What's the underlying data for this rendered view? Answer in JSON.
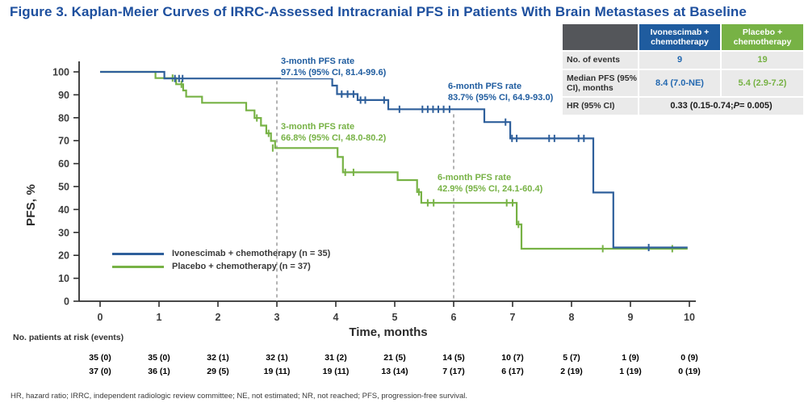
{
  "figure": {
    "title": "Figure 3. Kaplan-Meier Curves of IRRC-Assessed Intracranial PFS in Patients With Brain Metastases at Baseline",
    "footnote": "HR, hazard ratio; IRRC, independent radiologic review committee; NE, not estimated; NR, not reached; PFS, progression-free survival."
  },
  "colors": {
    "title_blue": "#1d4f9e",
    "ivo_blue": "#2e5f9b",
    "placebo_green": "#77b245",
    "header_gray": "#54565a",
    "row_gray": "#eaeaea",
    "dashed_gray": "#9a9a9a",
    "axis_dark": "#2f2f2f"
  },
  "summary_table": {
    "columns": [
      "Ivonescimab + chemotherapy",
      "Placebo + chemotherapy"
    ],
    "rows": {
      "events": {
        "label": "No. of events",
        "ivo": "9",
        "placebo": "19"
      },
      "median": {
        "label": "Median PFS (95% CI), months",
        "ivo": "8.4 (7.0-NE)",
        "placebo": "5.4 (2.9-7.2)"
      },
      "hr": {
        "label": "HR (95% CI)",
        "value_prefix": "0.33 (0.15-0.74; ",
        "value_italic": "P",
        "value_suffix": " = 0.005)"
      }
    }
  },
  "chart_data": {
    "type": "line",
    "subtype": "kaplan-meier-step",
    "xlabel": "Time, months",
    "ylabel": "PFS, %",
    "xlim": [
      0,
      10
    ],
    "ylim": [
      0,
      100
    ],
    "x_ticks": [
      0,
      1,
      2,
      3,
      4,
      5,
      6,
      7,
      8,
      9,
      10
    ],
    "y_ticks": [
      0,
      10,
      20,
      30,
      40,
      50,
      60,
      70,
      80,
      90,
      100
    ],
    "grid": false,
    "legend_position": "lower-left-inside",
    "reference_lines_x": [
      {
        "x": 3,
        "from_pfs": 96.0
      },
      {
        "x": 6,
        "from_pfs": 81.5
      }
    ],
    "series": [
      {
        "name": "Ivonescimab + chemotherapy (n = 35)",
        "color": "#2e5f9b",
        "risk_text_color": "#2f66a8",
        "steps": [
          [
            0,
            100
          ],
          [
            1.09,
            97.1
          ],
          [
            3.94,
            94.0
          ],
          [
            4.02,
            90.3
          ],
          [
            4.37,
            87.7
          ],
          [
            4.89,
            83.7
          ],
          [
            6.52,
            78.1
          ],
          [
            6.96,
            71.0
          ],
          [
            8.37,
            47.4
          ],
          [
            8.71,
            23.4
          ],
          [
            9.97,
            23.4
          ]
        ],
        "censors": [
          [
            1.27,
            97.1
          ],
          [
            1.34,
            97.1
          ],
          [
            1.4,
            97.1
          ],
          [
            4.1,
            90.3
          ],
          [
            4.2,
            90.3
          ],
          [
            4.3,
            90.3
          ],
          [
            4.42,
            87.7
          ],
          [
            4.5,
            87.7
          ],
          [
            4.82,
            87.7
          ],
          [
            5.08,
            83.7
          ],
          [
            5.47,
            83.7
          ],
          [
            5.56,
            83.7
          ],
          [
            5.65,
            83.7
          ],
          [
            5.74,
            83.7
          ],
          [
            5.83,
            83.7
          ],
          [
            5.93,
            83.7
          ],
          [
            6.88,
            78.1
          ],
          [
            6.99,
            71.0
          ],
          [
            7.07,
            71.0
          ],
          [
            7.62,
            71.0
          ],
          [
            7.71,
            71.0
          ],
          [
            8.12,
            71.0
          ],
          [
            8.21,
            71.0
          ],
          [
            9.31,
            23.4
          ]
        ]
      },
      {
        "name": "Placebo + chemotherapy (n = 37)",
        "color": "#77b245",
        "risk_text_color": "#7ab648",
        "steps": [
          [
            0,
            100
          ],
          [
            0.94,
            97.3
          ],
          [
            1.29,
            94.6
          ],
          [
            1.41,
            91.9
          ],
          [
            1.46,
            89.2
          ],
          [
            1.73,
            86.5
          ],
          [
            2.48,
            83.2
          ],
          [
            2.62,
            79.9
          ],
          [
            2.73,
            76.6
          ],
          [
            2.82,
            73.2
          ],
          [
            2.9,
            69.9
          ],
          [
            2.97,
            66.8
          ],
          [
            4.03,
            62.9
          ],
          [
            4.12,
            56.2
          ],
          [
            5.05,
            52.8
          ],
          [
            5.38,
            47.6
          ],
          [
            5.45,
            42.9
          ],
          [
            7.07,
            33.5
          ],
          [
            7.15,
            22.9
          ],
          [
            9.97,
            22.9
          ]
        ],
        "censors": [
          [
            1.23,
            97.3
          ],
          [
            1.38,
            94.6
          ],
          [
            2.66,
            79.9
          ],
          [
            2.86,
            73.2
          ],
          [
            2.93,
            66.8
          ],
          [
            4.16,
            56.2
          ],
          [
            4.3,
            56.2
          ],
          [
            5.41,
            47.6
          ],
          [
            5.56,
            42.9
          ],
          [
            5.66,
            42.9
          ],
          [
            6.9,
            42.9
          ],
          [
            7.0,
            42.9
          ],
          [
            7.1,
            33.5
          ],
          [
            8.53,
            22.9
          ],
          [
            9.71,
            22.9
          ]
        ]
      }
    ],
    "annotations": {
      "ivo_3mo": {
        "line1": "3-month PFS rate",
        "line2": "97.1% (95% CI, 81.4-99.6)"
      },
      "ivo_6mo": {
        "line1": "6-month PFS rate",
        "line2": "83.7% (95% CI, 64.9-93.0)"
      },
      "placebo_3mo": {
        "line1": "3-month PFS rate",
        "line2": "66.8% (95% CI, 48.0-80.2)"
      },
      "placebo_6mo": {
        "line1": "6-month PFS rate",
        "line2": "42.9% (95% CI, 24.1-60.4)"
      }
    },
    "at_risk": {
      "label": "No. patients at risk (events)",
      "months": [
        0,
        1,
        2,
        3,
        4,
        5,
        6,
        7,
        8,
        9,
        10
      ],
      "rows": [
        {
          "series": "Ivonescimab + chemotherapy",
          "values": [
            "35 (0)",
            "35 (0)",
            "32 (1)",
            "32 (1)",
            "31 (2)",
            "21 (5)",
            "14 (5)",
            "10 (7)",
            "5 (7)",
            "1 (9)",
            "0 (9)"
          ]
        },
        {
          "series": "Placebo + chemotherapy",
          "values": [
            "37 (0)",
            "36 (1)",
            "29 (5)",
            "19 (11)",
            "19 (11)",
            "13 (14)",
            "7 (17)",
            "6 (17)",
            "2 (19)",
            "1 (19)",
            "0 (19)"
          ]
        }
      ]
    }
  }
}
